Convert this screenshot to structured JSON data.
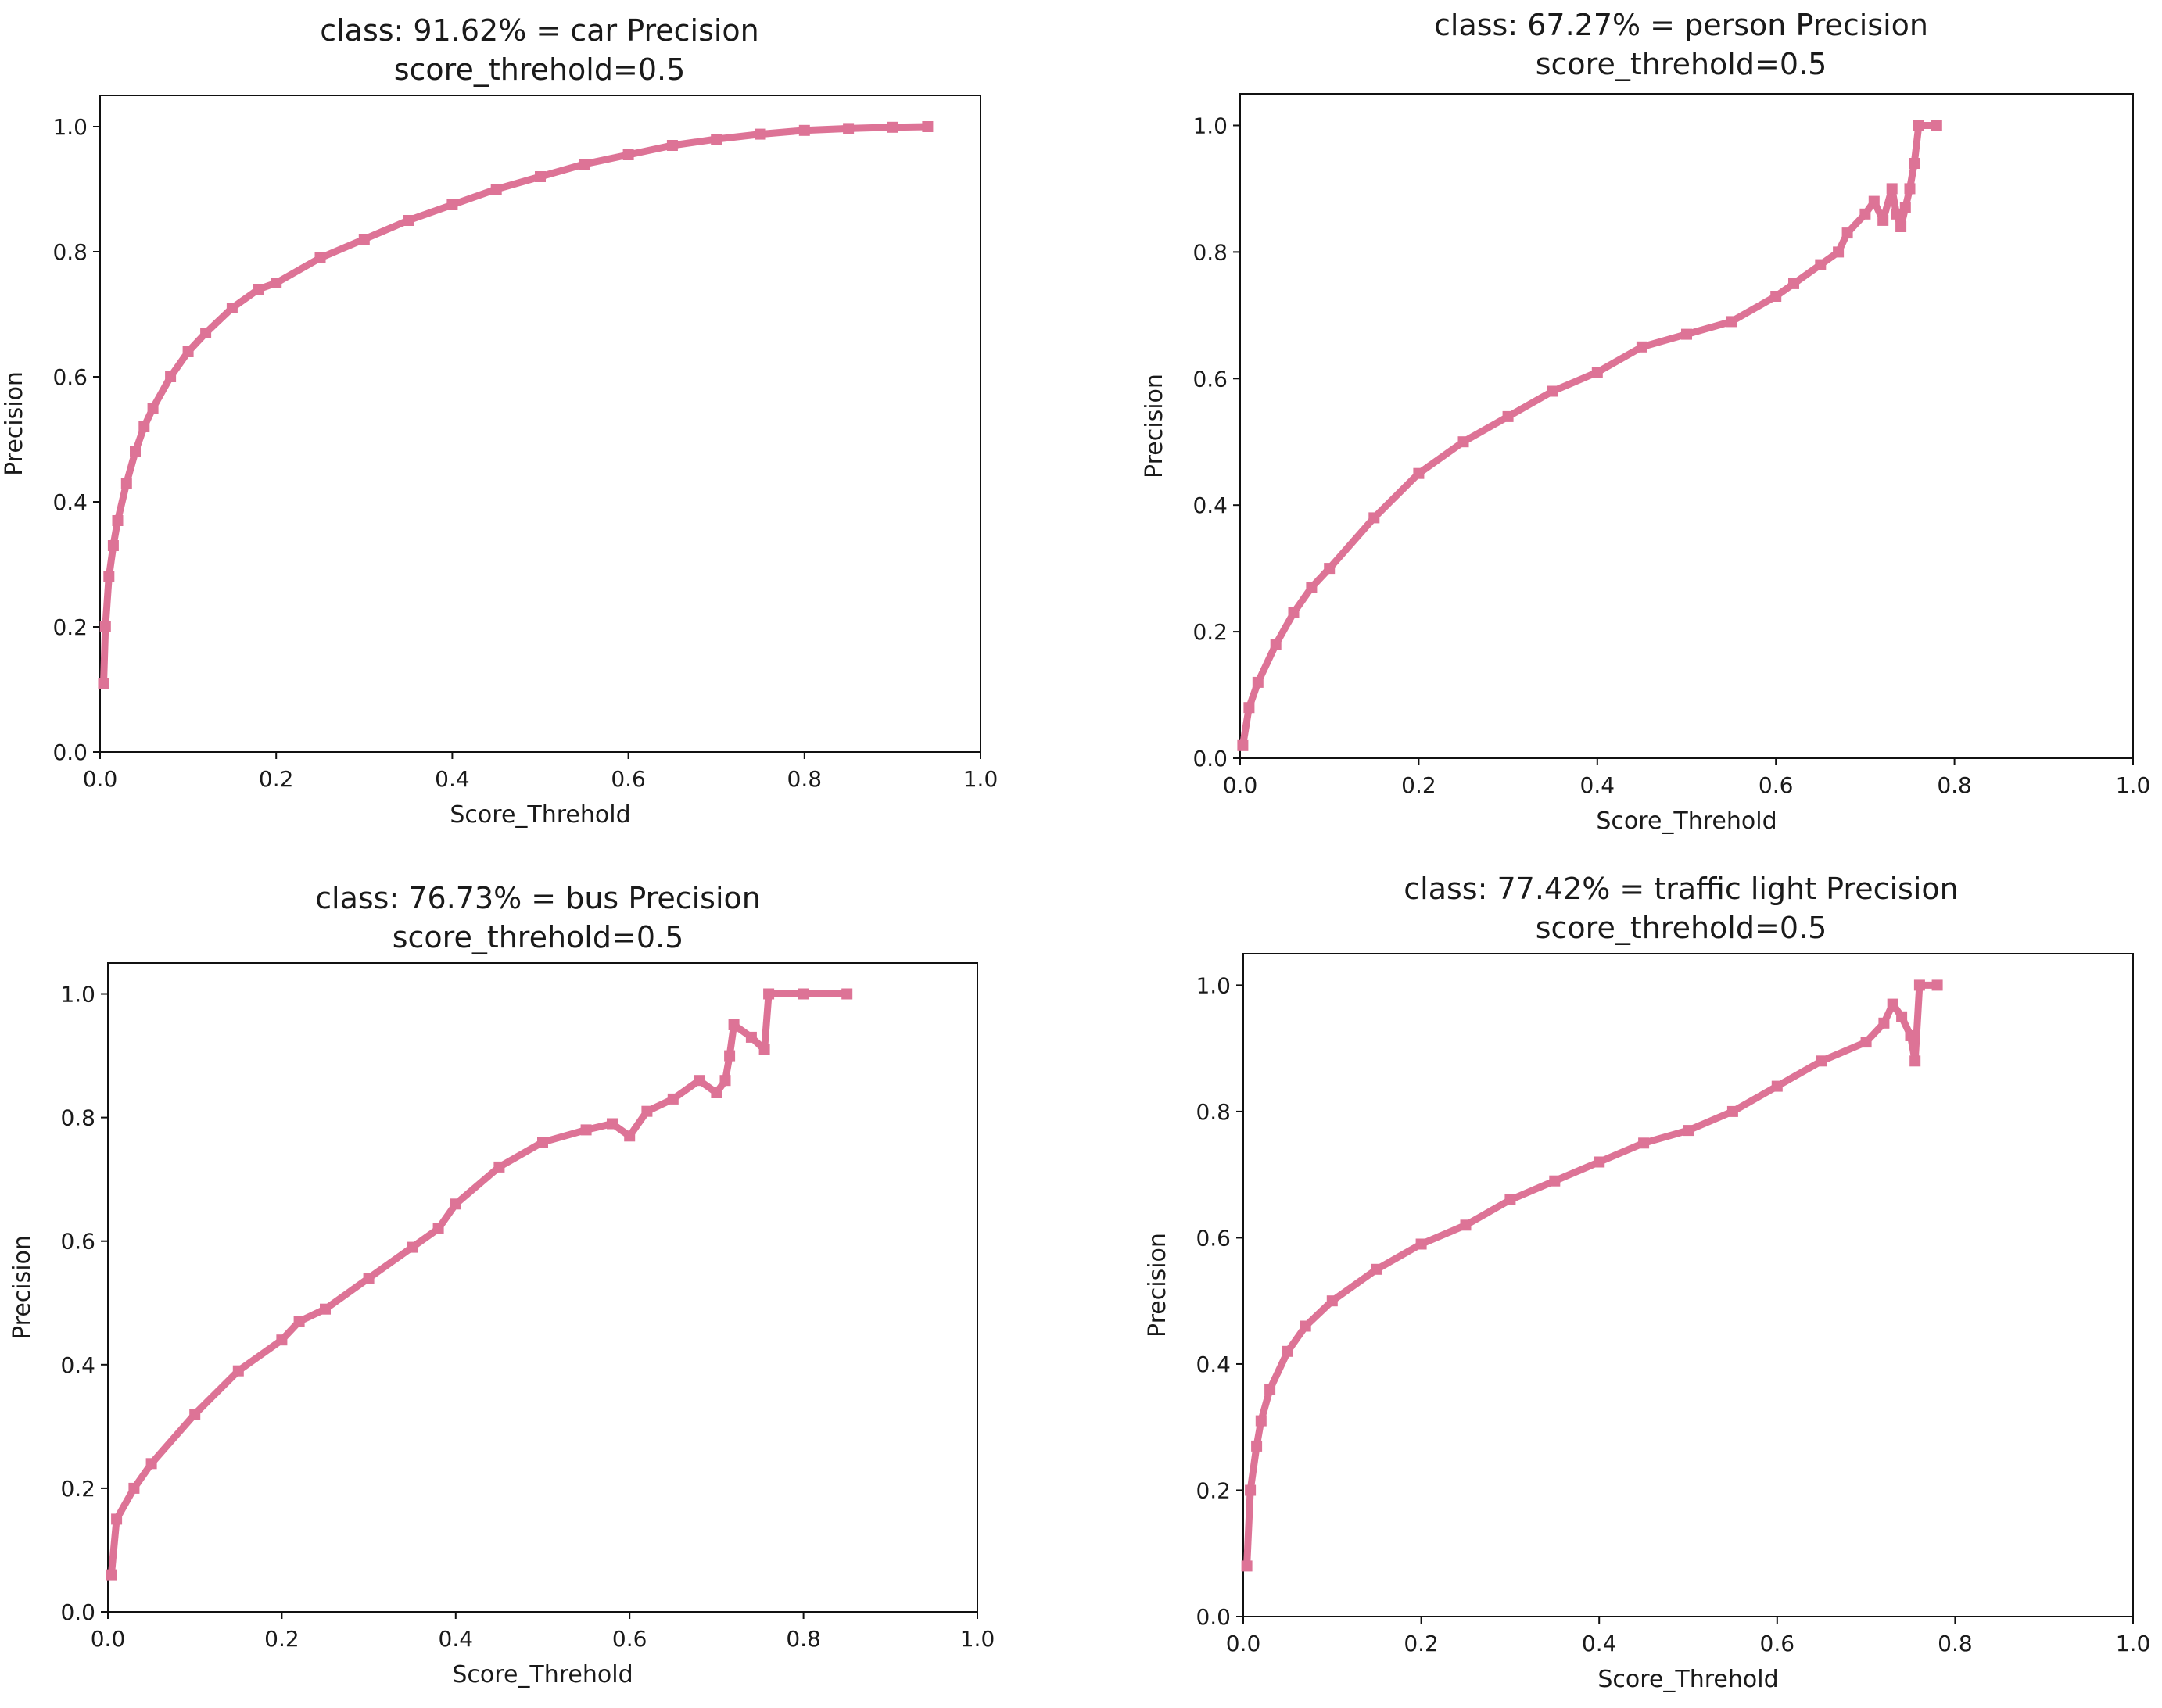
{
  "figure": {
    "series_color": "#dd7396",
    "axis_color": "#111111"
  },
  "chart_data": [
    {
      "type": "line",
      "title": "class: 91.62% = car Precision",
      "subtitle": "score_threhold=0.5",
      "xlabel": "Score_Threhold",
      "ylabel": "Precision",
      "xlim": [
        0,
        1
      ],
      "ylim": [
        0,
        1.05
      ],
      "xticks": [
        "0.0",
        "0.2",
        "0.4",
        "0.6",
        "0.8",
        "1.0"
      ],
      "yticks": [
        "0.0",
        "0.2",
        "0.4",
        "0.6",
        "0.8",
        "1.0"
      ],
      "series": [
        {
          "name": "car",
          "x": [
            0.004,
            0.006,
            0.01,
            0.015,
            0.02,
            0.03,
            0.04,
            0.05,
            0.06,
            0.08,
            0.1,
            0.12,
            0.15,
            0.18,
            0.2,
            0.25,
            0.3,
            0.35,
            0.4,
            0.45,
            0.5,
            0.55,
            0.6,
            0.65,
            0.7,
            0.75,
            0.8,
            0.85,
            0.9,
            0.94
          ],
          "y": [
            0.11,
            0.2,
            0.28,
            0.33,
            0.37,
            0.43,
            0.48,
            0.52,
            0.55,
            0.6,
            0.64,
            0.67,
            0.71,
            0.74,
            0.75,
            0.79,
            0.82,
            0.85,
            0.875,
            0.9,
            0.92,
            0.94,
            0.955,
            0.97,
            0.98,
            0.988,
            0.994,
            0.997,
            0.999,
            1.0
          ]
        }
      ]
    },
    {
      "type": "line",
      "title": "class: 67.27% = person Precision",
      "subtitle": "score_threhold=0.5",
      "xlabel": "Score_Threhold",
      "ylabel": "Precision",
      "xlim": [
        0,
        1
      ],
      "ylim": [
        0,
        1.05
      ],
      "xticks": [
        "0.0",
        "0.2",
        "0.4",
        "0.6",
        "0.8",
        "1.0"
      ],
      "yticks": [
        "0.0",
        "0.2",
        "0.4",
        "0.6",
        "0.8",
        "1.0"
      ],
      "series": [
        {
          "name": "person",
          "x": [
            0.003,
            0.01,
            0.02,
            0.04,
            0.06,
            0.08,
            0.1,
            0.15,
            0.2,
            0.25,
            0.3,
            0.35,
            0.4,
            0.45,
            0.5,
            0.55,
            0.6,
            0.62,
            0.65,
            0.67,
            0.68,
            0.7,
            0.71,
            0.72,
            0.73,
            0.735,
            0.74,
            0.745,
            0.75,
            0.755,
            0.76,
            0.78
          ],
          "y": [
            0.02,
            0.08,
            0.12,
            0.18,
            0.23,
            0.27,
            0.3,
            0.38,
            0.45,
            0.5,
            0.54,
            0.58,
            0.61,
            0.65,
            0.67,
            0.69,
            0.73,
            0.75,
            0.78,
            0.8,
            0.83,
            0.86,
            0.88,
            0.85,
            0.9,
            0.86,
            0.84,
            0.87,
            0.9,
            0.94,
            1.0,
            1.0
          ]
        }
      ]
    },
    {
      "type": "line",
      "title": "class: 76.73% = bus Precision",
      "subtitle": "score_threhold=0.5",
      "xlabel": "Score_Threhold",
      "ylabel": "Precision",
      "xlim": [
        0,
        1
      ],
      "ylim": [
        0,
        1.05
      ],
      "xticks": [
        "0.0",
        "0.2",
        "0.4",
        "0.6",
        "0.8",
        "1.0"
      ],
      "yticks": [
        "0.0",
        "0.2",
        "0.4",
        "0.6",
        "0.8",
        "1.0"
      ],
      "series": [
        {
          "name": "bus",
          "x": [
            0.004,
            0.01,
            0.03,
            0.05,
            0.1,
            0.15,
            0.2,
            0.22,
            0.25,
            0.3,
            0.35,
            0.38,
            0.4,
            0.45,
            0.5,
            0.55,
            0.58,
            0.6,
            0.62,
            0.65,
            0.68,
            0.7,
            0.71,
            0.715,
            0.72,
            0.74,
            0.755,
            0.76,
            0.8,
            0.85
          ],
          "y": [
            0.06,
            0.15,
            0.2,
            0.24,
            0.32,
            0.39,
            0.44,
            0.47,
            0.49,
            0.54,
            0.59,
            0.62,
            0.66,
            0.72,
            0.76,
            0.78,
            0.79,
            0.77,
            0.81,
            0.83,
            0.86,
            0.84,
            0.86,
            0.9,
            0.95,
            0.93,
            0.91,
            1.0,
            1.0,
            1.0
          ]
        }
      ]
    },
    {
      "type": "line",
      "title": "class: 77.42% = traffic light Precision",
      "subtitle": "score_threhold=0.5",
      "xlabel": "Score_Threhold",
      "ylabel": "Precision",
      "xlim": [
        0,
        1
      ],
      "ylim": [
        0,
        1.05
      ],
      "xticks": [
        "0.0",
        "0.2",
        "0.4",
        "0.6",
        "0.8",
        "1.0"
      ],
      "yticks": [
        "0.0",
        "0.2",
        "0.4",
        "0.6",
        "0.8",
        "1.0"
      ],
      "series": [
        {
          "name": "traffic light",
          "x": [
            0.004,
            0.008,
            0.015,
            0.02,
            0.03,
            0.05,
            0.07,
            0.1,
            0.15,
            0.2,
            0.25,
            0.3,
            0.35,
            0.4,
            0.45,
            0.5,
            0.55,
            0.6,
            0.65,
            0.7,
            0.72,
            0.73,
            0.74,
            0.75,
            0.755,
            0.76,
            0.78
          ],
          "y": [
            0.08,
            0.2,
            0.27,
            0.31,
            0.36,
            0.42,
            0.46,
            0.5,
            0.55,
            0.59,
            0.62,
            0.66,
            0.69,
            0.72,
            0.75,
            0.77,
            0.8,
            0.84,
            0.88,
            0.91,
            0.94,
            0.97,
            0.95,
            0.92,
            0.88,
            1.0,
            1.0
          ]
        }
      ]
    }
  ]
}
